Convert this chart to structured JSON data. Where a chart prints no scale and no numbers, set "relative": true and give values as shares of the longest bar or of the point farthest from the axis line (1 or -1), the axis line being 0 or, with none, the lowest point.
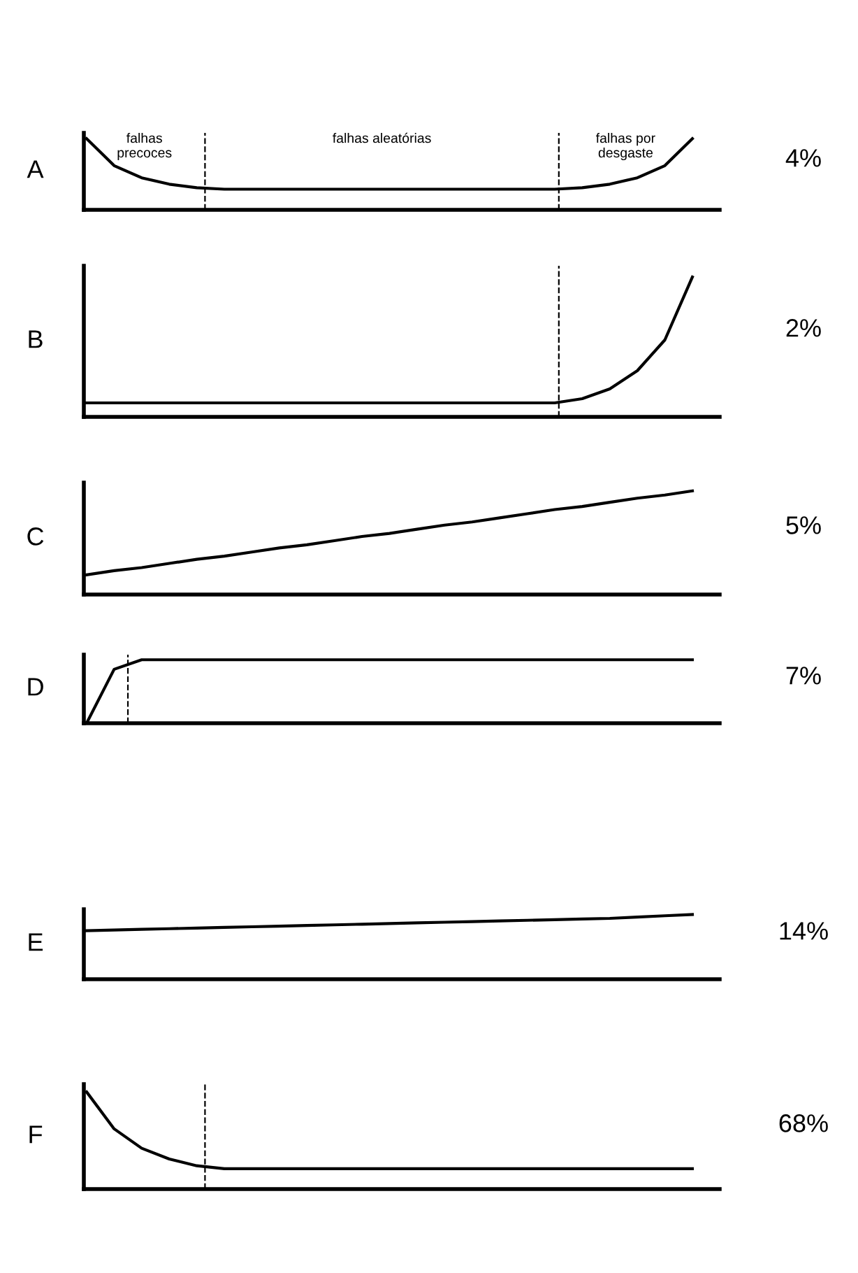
{
  "chart_data": [
    {
      "type": "line",
      "relative": true,
      "ylabel": "A",
      "color": "#000000",
      "categories": [
        null,
        null,
        null,
        null,
        null,
        null,
        null,
        null,
        null,
        null,
        null,
        null,
        null,
        null,
        null,
        null,
        null,
        null,
        null,
        null,
        null,
        null,
        null
      ],
      "values": [
        1.0,
        0.62,
        0.45,
        0.36,
        0.31,
        0.29,
        0.29,
        0.29,
        0.29,
        0.29,
        0.29,
        0.29,
        0.29,
        0.29,
        0.29,
        0.29,
        0.29,
        0.29,
        0.31,
        0.36,
        0.45,
        0.62,
        1.0
      ],
      "annotations": [
        "4%",
        "falhas\nprecoces",
        "falhas aleatórias",
        "falhas por\ndesgaste"
      ]
    },
    {
      "type": "line",
      "relative": true,
      "ylabel": "B",
      "color": "#000000",
      "categories": [
        null,
        null,
        null,
        null,
        null,
        null,
        null,
        null,
        null,
        null,
        null,
        null,
        null,
        null,
        null,
        null,
        null,
        null,
        null,
        null,
        null,
        null,
        null
      ],
      "values": [
        0.1,
        0.1,
        0.1,
        0.1,
        0.1,
        0.1,
        0.1,
        0.1,
        0.1,
        0.1,
        0.1,
        0.1,
        0.1,
        0.1,
        0.1,
        0.1,
        0.1,
        0.1,
        0.13,
        0.2,
        0.33,
        0.55,
        1.0
      ],
      "annotations": [
        "2%"
      ]
    },
    {
      "type": "line",
      "relative": true,
      "ylabel": "C",
      "color": "#000000",
      "categories": [
        null,
        null,
        null,
        null,
        null,
        null,
        null,
        null,
        null,
        null,
        null,
        null,
        null,
        null,
        null,
        null,
        null,
        null,
        null,
        null,
        null,
        null,
        null
      ],
      "values": [
        0.19,
        0.23,
        0.26,
        0.3,
        0.34,
        0.37,
        0.41,
        0.45,
        0.48,
        0.52,
        0.56,
        0.59,
        0.63,
        0.67,
        0.7,
        0.74,
        0.78,
        0.82,
        0.85,
        0.89,
        0.93,
        0.96,
        1.0
      ],
      "annotations": [
        "5%"
      ]
    },
    {
      "type": "line",
      "relative": true,
      "ylabel": "D",
      "color": "#000000",
      "categories": [
        null,
        null,
        null,
        null,
        null,
        null,
        null,
        null,
        null,
        null,
        null,
        null,
        null,
        null,
        null,
        null,
        null,
        null,
        null,
        null,
        null,
        null,
        null
      ],
      "values": [
        0.0,
        0.85,
        1.0,
        1.0,
        1.0,
        1.0,
        1.0,
        1.0,
        1.0,
        1.0,
        1.0,
        1.0,
        1.0,
        1.0,
        1.0,
        1.0,
        1.0,
        1.0,
        1.0,
        1.0,
        1.0,
        1.0,
        1.0
      ],
      "annotations": [
        "7%"
      ]
    },
    {
      "type": "line",
      "relative": true,
      "ylabel": "E",
      "color": "#000000",
      "categories": [
        null,
        null,
        null,
        null,
        null,
        null,
        null,
        null,
        null,
        null,
        null,
        null,
        null,
        null,
        null,
        null,
        null,
        null,
        null,
        null,
        null,
        null,
        null
      ],
      "values": [
        0.75,
        0.76,
        0.77,
        0.78,
        0.79,
        0.8,
        0.81,
        0.82,
        0.83,
        0.84,
        0.85,
        0.86,
        0.87,
        0.88,
        0.89,
        0.9,
        0.91,
        0.92,
        0.93,
        0.94,
        0.96,
        0.98,
        1.0
      ],
      "annotations": [
        "14%"
      ]
    },
    {
      "type": "line",
      "relative": true,
      "ylabel": "F",
      "color": "#000000",
      "categories": [
        null,
        null,
        null,
        null,
        null,
        null,
        null,
        null,
        null,
        null,
        null,
        null,
        null,
        null,
        null,
        null,
        null,
        null,
        null,
        null,
        null,
        null,
        null
      ],
      "values": [
        1.0,
        0.62,
        0.42,
        0.31,
        0.24,
        0.21,
        0.21,
        0.21,
        0.21,
        0.21,
        0.21,
        0.21,
        0.21,
        0.21,
        0.21,
        0.21,
        0.21,
        0.21,
        0.21,
        0.21,
        0.21,
        0.21,
        0.21
      ],
      "annotations": [
        "68%"
      ]
    }
  ]
}
